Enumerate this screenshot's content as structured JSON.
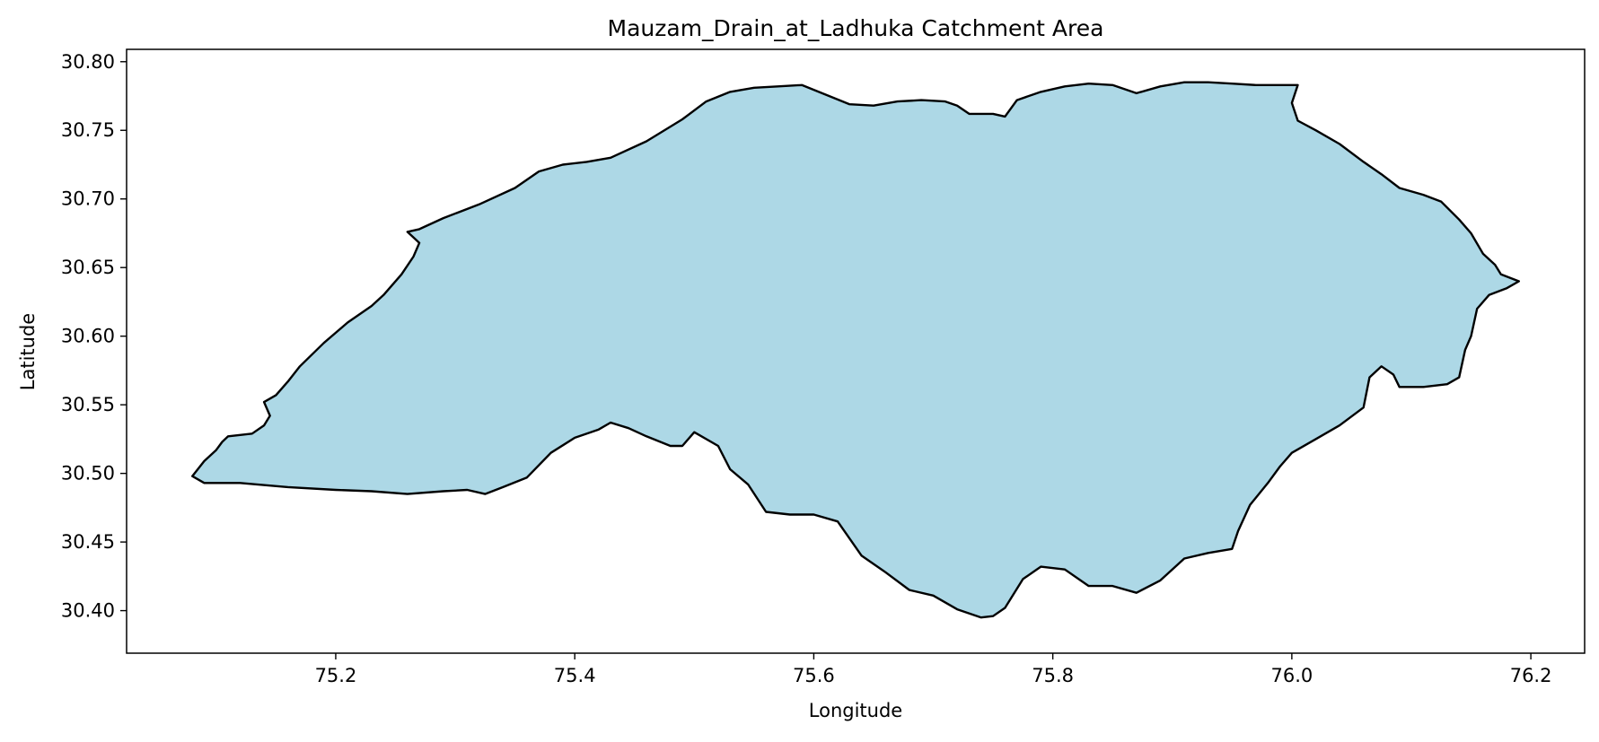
{
  "chart_data": {
    "type": "area",
    "title": "Mauzam_Drain_at_Ladhuka Catchment Area",
    "xlabel": "Longitude",
    "ylabel": "Latitude",
    "xlim": [
      75.025,
      76.245
    ],
    "ylim": [
      30.369,
      30.809
    ],
    "xticks": [
      75.2,
      75.4,
      75.6,
      75.8,
      76.0,
      76.2
    ],
    "xtick_labels": [
      "75.2",
      "75.4",
      "75.6",
      "75.8",
      "76.0",
      "76.2"
    ],
    "yticks": [
      30.4,
      30.45,
      30.5,
      30.55,
      30.6,
      30.65,
      30.7,
      30.75,
      30.8
    ],
    "ytick_labels": [
      "30.40",
      "30.45",
      "30.50",
      "30.55",
      "30.60",
      "30.65",
      "30.70",
      "30.75",
      "30.80"
    ],
    "grid": false,
    "legend": "none",
    "fill_color": "#add8e6",
    "edge_color": "#000000",
    "boundary": [
      [
        75.08,
        30.498
      ],
      [
        75.09,
        30.509
      ],
      [
        75.1,
        30.517
      ],
      [
        75.105,
        30.523
      ],
      [
        75.11,
        30.527
      ],
      [
        75.12,
        30.528
      ],
      [
        75.13,
        30.529
      ],
      [
        75.14,
        30.535
      ],
      [
        75.145,
        30.542
      ],
      [
        75.14,
        30.552
      ],
      [
        75.15,
        30.557
      ],
      [
        75.16,
        30.567
      ],
      [
        75.17,
        30.578
      ],
      [
        75.19,
        30.595
      ],
      [
        75.21,
        30.61
      ],
      [
        75.23,
        30.622
      ],
      [
        75.24,
        30.63
      ],
      [
        75.255,
        30.645
      ],
      [
        75.265,
        30.658
      ],
      [
        75.27,
        30.668
      ],
      [
        75.26,
        30.676
      ],
      [
        75.27,
        30.678
      ],
      [
        75.29,
        30.686
      ],
      [
        75.32,
        30.696
      ],
      [
        75.35,
        30.708
      ],
      [
        75.37,
        30.72
      ],
      [
        75.39,
        30.725
      ],
      [
        75.41,
        30.727
      ],
      [
        75.43,
        30.73
      ],
      [
        75.46,
        30.742
      ],
      [
        75.49,
        30.758
      ],
      [
        75.51,
        30.771
      ],
      [
        75.53,
        30.778
      ],
      [
        75.55,
        30.781
      ],
      [
        75.57,
        30.782
      ],
      [
        75.59,
        30.783
      ],
      [
        75.61,
        30.776
      ],
      [
        75.63,
        30.769
      ],
      [
        75.65,
        30.768
      ],
      [
        75.67,
        30.771
      ],
      [
        75.69,
        30.772
      ],
      [
        75.71,
        30.771
      ],
      [
        75.72,
        30.768
      ],
      [
        75.73,
        30.762
      ],
      [
        75.75,
        30.762
      ],
      [
        75.76,
        30.76
      ],
      [
        75.77,
        30.772
      ],
      [
        75.79,
        30.778
      ],
      [
        75.81,
        30.782
      ],
      [
        75.83,
        30.784
      ],
      [
        75.85,
        30.783
      ],
      [
        75.87,
        30.777
      ],
      [
        75.89,
        30.782
      ],
      [
        75.91,
        30.785
      ],
      [
        75.93,
        30.785
      ],
      [
        75.95,
        30.784
      ],
      [
        75.97,
        30.783
      ],
      [
        75.985,
        30.783
      ],
      [
        76.005,
        30.783
      ],
      [
        76.0,
        30.77
      ],
      [
        76.005,
        30.757
      ],
      [
        76.02,
        30.75
      ],
      [
        76.04,
        30.74
      ],
      [
        76.06,
        30.727
      ],
      [
        76.075,
        30.718
      ],
      [
        76.09,
        30.708
      ],
      [
        76.11,
        30.703
      ],
      [
        76.125,
        30.698
      ],
      [
        76.14,
        30.685
      ],
      [
        76.15,
        30.675
      ],
      [
        76.16,
        30.66
      ],
      [
        76.17,
        30.652
      ],
      [
        76.175,
        30.645
      ],
      [
        76.19,
        30.64
      ],
      [
        76.18,
        30.635
      ],
      [
        76.165,
        30.63
      ],
      [
        76.155,
        30.62
      ],
      [
        76.15,
        30.6
      ],
      [
        76.145,
        30.59
      ],
      [
        76.14,
        30.57
      ],
      [
        76.13,
        30.565
      ],
      [
        76.11,
        30.563
      ],
      [
        76.09,
        30.563
      ],
      [
        76.085,
        30.572
      ],
      [
        76.075,
        30.578
      ],
      [
        76.065,
        30.57
      ],
      [
        76.06,
        30.548
      ],
      [
        76.04,
        30.535
      ],
      [
        76.02,
        30.525
      ],
      [
        76.0,
        30.515
      ],
      [
        75.99,
        30.505
      ],
      [
        75.98,
        30.493
      ],
      [
        75.965,
        30.477
      ],
      [
        75.955,
        30.458
      ],
      [
        75.95,
        30.445
      ],
      [
        75.93,
        30.442
      ],
      [
        75.91,
        30.438
      ],
      [
        75.89,
        30.422
      ],
      [
        75.87,
        30.413
      ],
      [
        75.85,
        30.418
      ],
      [
        75.83,
        30.418
      ],
      [
        75.81,
        30.43
      ],
      [
        75.79,
        30.432
      ],
      [
        75.775,
        30.423
      ],
      [
        75.76,
        30.402
      ],
      [
        75.75,
        30.396
      ],
      [
        75.74,
        30.395
      ],
      [
        75.72,
        30.401
      ],
      [
        75.7,
        30.411
      ],
      [
        75.68,
        30.415
      ],
      [
        75.66,
        30.428
      ],
      [
        75.64,
        30.44
      ],
      [
        75.62,
        30.465
      ],
      [
        75.6,
        30.47
      ],
      [
        75.58,
        30.47
      ],
      [
        75.56,
        30.472
      ],
      [
        75.545,
        30.492
      ],
      [
        75.53,
        30.503
      ],
      [
        75.52,
        30.52
      ],
      [
        75.5,
        30.53
      ],
      [
        75.49,
        30.52
      ],
      [
        75.48,
        30.52
      ],
      [
        75.46,
        30.527
      ],
      [
        75.445,
        30.533
      ],
      [
        75.43,
        30.537
      ],
      [
        75.42,
        30.532
      ],
      [
        75.4,
        30.526
      ],
      [
        75.38,
        30.515
      ],
      [
        75.36,
        30.497
      ],
      [
        75.34,
        30.49
      ],
      [
        75.325,
        30.485
      ],
      [
        75.31,
        30.488
      ],
      [
        75.29,
        30.487
      ],
      [
        75.26,
        30.485
      ],
      [
        75.23,
        30.487
      ],
      [
        75.2,
        30.488
      ],
      [
        75.16,
        30.49
      ],
      [
        75.12,
        30.493
      ],
      [
        75.09,
        30.493
      ],
      [
        75.08,
        30.498
      ]
    ]
  }
}
